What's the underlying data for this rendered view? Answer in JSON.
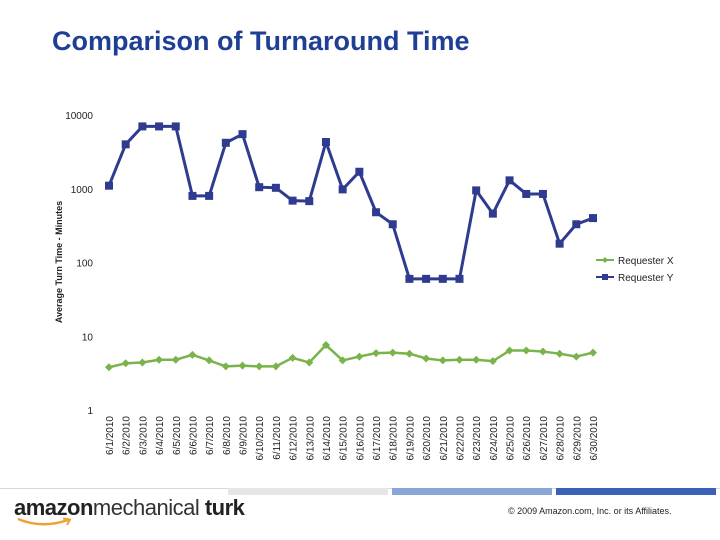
{
  "chart_data": {
    "type": "line",
    "title": "Comparison of Turnaround Time",
    "xlabel": "",
    "ylabel": "Average Turn Time - Minutes",
    "yscale": "log",
    "ylim": [
      1,
      10000
    ],
    "yticks": [
      "10000",
      "1000",
      "100",
      "10",
      "1"
    ],
    "ytick_values": [
      10000,
      1000,
      100,
      10,
      1
    ],
    "legend_position": "right",
    "categories": [
      "6/1/2010",
      "6/2/2010",
      "6/3/2010",
      "6/4/2010",
      "6/5/2010",
      "6/6/2010",
      "6/7/2010",
      "6/8/2010",
      "6/9/2010",
      "6/10/2010",
      "6/11/2010",
      "6/12/2010",
      "6/13/2010",
      "6/14/2010",
      "6/15/2010",
      "6/16/2010",
      "6/17/2010",
      "6/18/2010",
      "6/19/2010",
      "6/20/2010",
      "6/21/2010",
      "6/22/2010",
      "6/23/2010",
      "6/24/2010",
      "6/25/2010",
      "6/26/2010",
      "6/27/2010",
      "6/28/2010",
      "6/29/2010",
      "6/30/2010"
    ],
    "series": [
      {
        "name": "Requester X",
        "color": "#7ab34c",
        "marker": "diamond",
        "values": [
          3.8,
          4.3,
          4.4,
          4.8,
          4.8,
          5.6,
          4.7,
          3.9,
          4.0,
          3.9,
          3.9,
          5.1,
          4.4,
          7.6,
          4.7,
          5.3,
          5.9,
          6.0,
          5.8,
          5.0,
          4.7,
          4.8,
          4.8,
          4.6,
          6.4,
          6.4,
          6.2,
          5.8,
          5.3,
          6.0
        ]
      },
      {
        "name": "Requester Y",
        "color": "#2e3b8f",
        "marker": "square",
        "values": [
          1100,
          4000,
          7000,
          7000,
          7000,
          800,
          800,
          4200,
          5500,
          1050,
          1030,
          690,
          680,
          4300,
          980,
          1700,
          480,
          330,
          60,
          60,
          60,
          60,
          950,
          460,
          1300,
          850,
          850,
          180,
          330,
          400
        ]
      }
    ]
  },
  "footer": {
    "logo_part1": "amazon",
    "logo_part2": "mechanical ",
    "logo_part3": "turk",
    "copyright": "© 2009 Amazon.com, Inc. or its Affiliates.",
    "bar_colors": [
      "#e6e6e6",
      "#8aa6d6",
      "#3a62b8"
    ]
  }
}
